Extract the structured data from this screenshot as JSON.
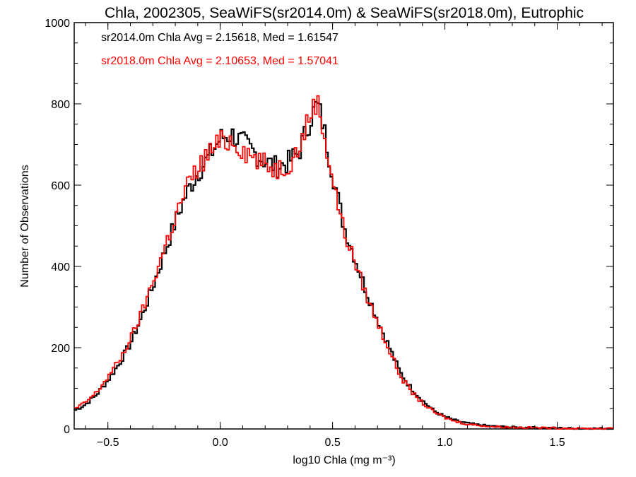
{
  "chart_data": {
    "type": "line",
    "title": "Chla, 2002305, SeaWiFS(sr2014.0m) & SeaWiFS(sr2018.0m), Eutrophic",
    "xlabel": "log10 Chla (mg m⁻³)",
    "ylabel": "Number of Observations",
    "xlim": [
      -0.65,
      1.75
    ],
    "ylim": [
      0,
      1000
    ],
    "x_ticks": [
      -0.5,
      0.0,
      0.5,
      1.0,
      1.5
    ],
    "x_tick_labels": [
      "−0.5",
      "0.0",
      "0.5",
      "1.0",
      "1.5"
    ],
    "y_ticks": [
      0,
      200,
      400,
      600,
      800,
      1000
    ],
    "y_tick_labels": [
      "0",
      "200",
      "400",
      "600",
      "800",
      "1000"
    ],
    "annotations": [
      {
        "text": "sr2014.0m Chla Avg = 2.15618, Med = 1.61547",
        "color": "#000000"
      },
      {
        "text": "sr2018.0m Chla Avg = 2.10653, Med = 1.57041",
        "color": "#ff0000"
      }
    ],
    "series": [
      {
        "color": "#000000",
        "x": [
          -0.65,
          -0.6,
          -0.55,
          -0.5,
          -0.45,
          -0.4,
          -0.35,
          -0.3,
          -0.25,
          -0.2,
          -0.15,
          -0.1,
          -0.05,
          0.0,
          0.05,
          0.1,
          0.15,
          0.2,
          0.25,
          0.3,
          0.35,
          0.4,
          0.43,
          0.45,
          0.5,
          0.55,
          0.6,
          0.65,
          0.7,
          0.75,
          0.8,
          0.85,
          0.9,
          0.95,
          1.0,
          1.05,
          1.1,
          1.15,
          1.2,
          1.3,
          1.4,
          1.5,
          1.6,
          1.75
        ],
        "y": [
          45,
          60,
          85,
          120,
          160,
          210,
          275,
          350,
          430,
          510,
          580,
          630,
          670,
          715,
          725,
          705,
          680,
          660,
          645,
          655,
          680,
          760,
          800,
          770,
          630,
          500,
          420,
          340,
          270,
          205,
          140,
          100,
          70,
          45,
          30,
          20,
          14,
          10,
          7,
          4,
          3,
          2,
          1,
          1
        ]
      },
      {
        "color": "#ff0000",
        "x": [
          -0.65,
          -0.6,
          -0.55,
          -0.5,
          -0.45,
          -0.4,
          -0.35,
          -0.3,
          -0.25,
          -0.2,
          -0.15,
          -0.1,
          -0.05,
          0.0,
          0.05,
          0.1,
          0.15,
          0.2,
          0.25,
          0.3,
          0.35,
          0.4,
          0.43,
          0.45,
          0.5,
          0.55,
          0.6,
          0.65,
          0.7,
          0.75,
          0.8,
          0.85,
          0.9,
          0.95,
          1.0,
          1.05,
          1.1,
          1.15,
          1.2,
          1.3,
          1.4,
          1.5,
          1.6,
          1.75
        ],
        "y": [
          48,
          65,
          90,
          128,
          168,
          220,
          285,
          362,
          442,
          520,
          595,
          640,
          680,
          705,
          712,
          690,
          668,
          650,
          640,
          650,
          690,
          775,
          810,
          760,
          615,
          488,
          410,
          330,
          262,
          198,
          132,
          92,
          64,
          42,
          28,
          18,
          12,
          9,
          6,
          4,
          3,
          2,
          1,
          1
        ]
      }
    ]
  }
}
